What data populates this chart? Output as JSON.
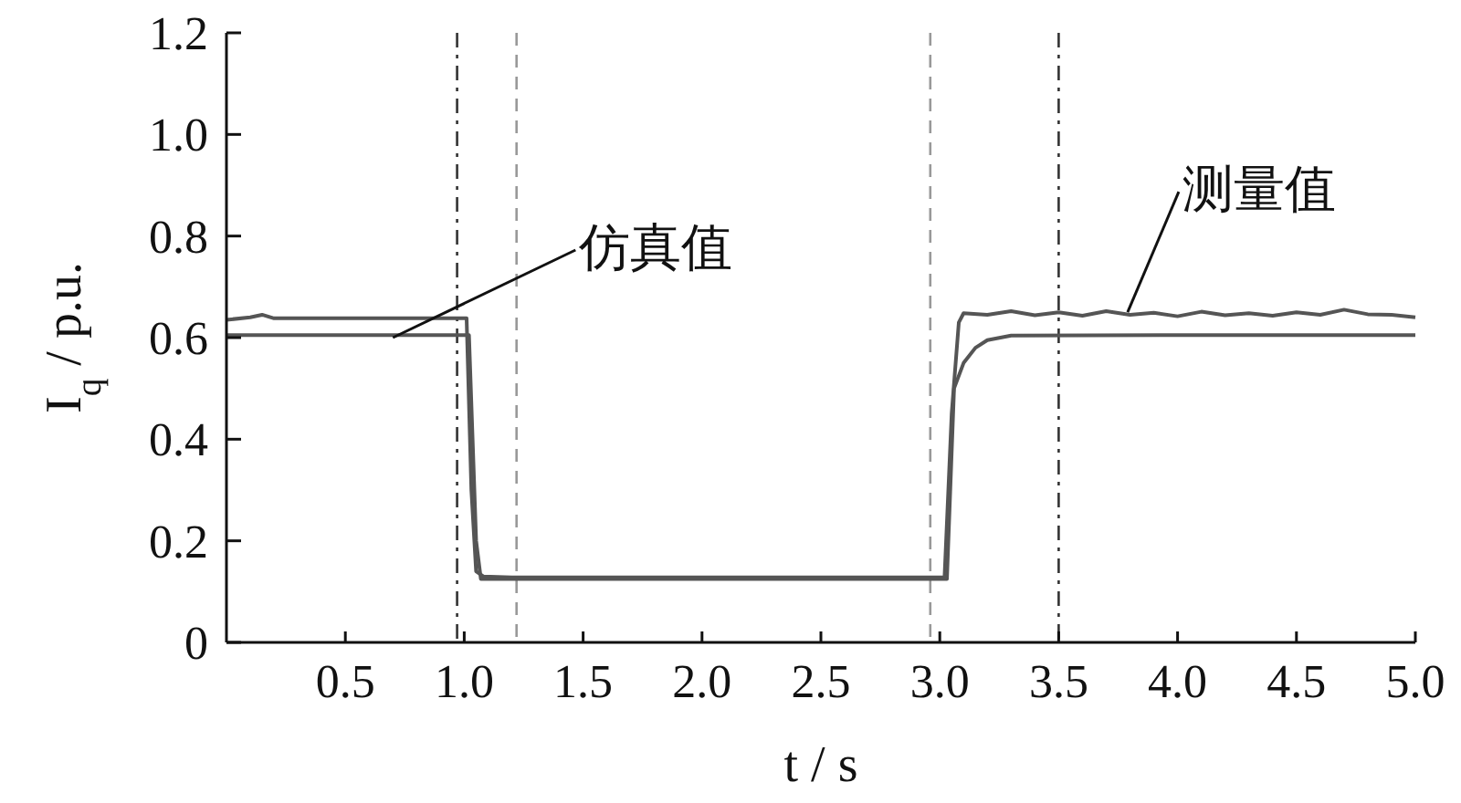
{
  "chart_data": {
    "type": "line",
    "xlabel": "t / s",
    "ylabel": "I$_{q}$ / p.u.",
    "xlim": [
      0,
      5
    ],
    "ylim": [
      0,
      1.2
    ],
    "xticks": [
      0.5,
      {
        "value": 1,
        "label": "1.0"
      },
      1.5,
      {
        "value": 2,
        "label": "2.0"
      },
      2.5,
      {
        "value": 3,
        "label": "3.0"
      },
      3.5,
      {
        "value": 4,
        "label": "4.0"
      },
      4.5,
      {
        "value": 5,
        "label": "5.0"
      }
    ],
    "yticks": [
      0,
      0.2,
      0.4,
      0.6,
      0.8,
      {
        "value": 1,
        "label": "1.0"
      },
      1.2
    ],
    "grid": false,
    "line_style": "solid",
    "series": [
      {
        "color": "#555555",
        "x": [
          0,
          0.1,
          0.15,
          0.2,
          0.5,
          0.9,
          1.01,
          1.03,
          1.05,
          1.08,
          1.2,
          2.0,
          2.9,
          3.02,
          3.05,
          3.08,
          3.1,
          3.2,
          3.3,
          3.4,
          3.5,
          3.6,
          3.7,
          3.8,
          3.9,
          4.0,
          4.1,
          4.2,
          4.3,
          4.4,
          4.5,
          4.6,
          4.7,
          4.8,
          4.9,
          5.0
        ],
        "values": [
          0.635,
          0.64,
          0.645,
          0.638,
          0.638,
          0.638,
          0.638,
          0.3,
          0.14,
          0.13,
          0.128,
          0.128,
          0.128,
          0.128,
          0.45,
          0.63,
          0.648,
          0.645,
          0.652,
          0.644,
          0.65,
          0.643,
          0.652,
          0.645,
          0.649,
          0.642,
          0.651,
          0.644,
          0.648,
          0.643,
          0.65,
          0.645,
          0.655,
          0.646,
          0.645,
          0.64
        ]
      },
      {
        "color": "#555555",
        "x": [
          0,
          1.0,
          1.02,
          1.05,
          1.07,
          2.0,
          3.03,
          3.06,
          3.1,
          3.15,
          3.2,
          3.3,
          4.0,
          5.0
        ],
        "values": [
          0.605,
          0.605,
          0.605,
          0.2,
          0.125,
          0.125,
          0.125,
          0.5,
          0.55,
          0.58,
          0.595,
          0.604,
          0.605,
          0.605
        ]
      }
    ],
    "ref_lines": [
      {
        "axis": "x",
        "value": 0.97,
        "color": "#333333",
        "line_style": "dashdot"
      },
      {
        "axis": "x",
        "value": 1.22,
        "color": "#999999",
        "line_style": "dashed"
      },
      {
        "axis": "x",
        "value": 2.96,
        "color": "#999999",
        "line_style": "dashed"
      },
      {
        "axis": "x",
        "value": 3.5,
        "color": "#333333",
        "line_style": "dashdot"
      }
    ],
    "annotations": [
      {
        "text": "仿真值",
        "x": 0.7,
        "y": 0.6
      },
      {
        "text": "测量值",
        "x": 3.79,
        "y": 0.65
      }
    ]
  }
}
